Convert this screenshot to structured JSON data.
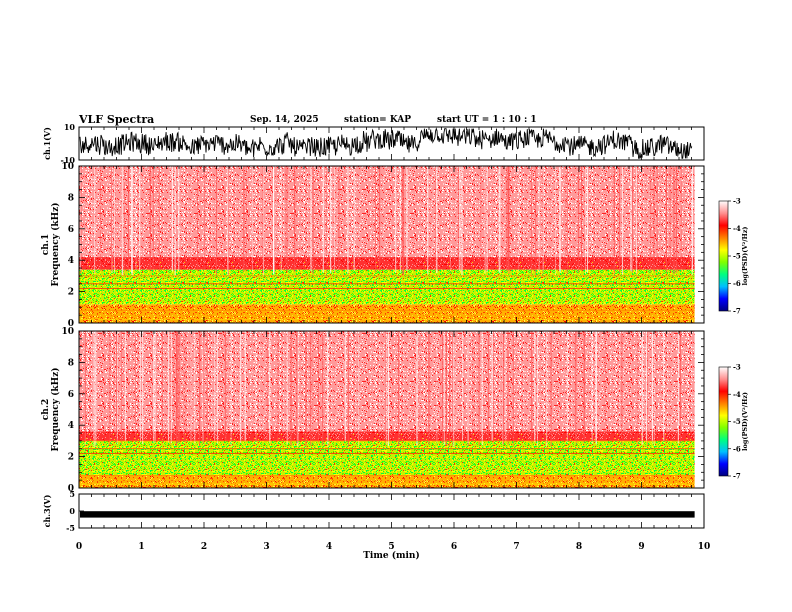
{
  "header": {
    "title": "VLF Spectra",
    "date": "Sep. 14, 2025",
    "station": "station= KAP",
    "start": "start  UT =   1 : 10 : 1"
  },
  "chart_data": [
    {
      "type": "line",
      "name": "ch1-waveform",
      "ylabel": "ch.1(V)",
      "ylim": [
        -10,
        10
      ],
      "yticks": [
        "10",
        "-10"
      ],
      "description": "noisy waveform oscillating between about -10 and 10 V"
    },
    {
      "type": "heatmap",
      "name": "ch1-spectrogram",
      "ylabel_top": "ch.1",
      "ylabel": "Frequency (kHz)",
      "ylim": [
        0,
        10
      ],
      "yticks": [
        "0",
        "2",
        "4",
        "6",
        "8",
        "10"
      ],
      "bands": [
        {
          "from": 0,
          "to": 1.2,
          "level": "orange"
        },
        {
          "from": 1.2,
          "to": 3.4,
          "level": "green-yellow"
        },
        {
          "from": 3.4,
          "to": 4.2,
          "level": "red"
        },
        {
          "from": 4.2,
          "to": 10,
          "level": "light-red"
        }
      ]
    },
    {
      "type": "heatmap",
      "name": "ch2-spectrogram",
      "ylabel_top": "ch.2",
      "ylabel": "Frequency (kHz)",
      "ylim": [
        0,
        10
      ],
      "yticks": [
        "0",
        "2",
        "4",
        "6",
        "8",
        "10"
      ],
      "bands": [
        {
          "from": 0,
          "to": 0.8,
          "level": "orange"
        },
        {
          "from": 0.8,
          "to": 3.0,
          "level": "green-yellow"
        },
        {
          "from": 3.0,
          "to": 3.6,
          "level": "red"
        },
        {
          "from": 3.6,
          "to": 10,
          "level": "light-red"
        }
      ]
    },
    {
      "type": "line",
      "name": "ch3-waveform",
      "ylabel": "ch.3(V)",
      "ylim": [
        -5,
        5
      ],
      "yticks": [
        "5",
        "0",
        "-5"
      ],
      "level": -1.0,
      "xlabel": "Time (min)",
      "xlim": [
        0,
        10
      ],
      "xticks": [
        "0",
        "1",
        "2",
        "3",
        "4",
        "5",
        "6",
        "7",
        "8",
        "9",
        "10"
      ]
    }
  ],
  "colorbar": {
    "label": "log(PSD)(V²/Hz)",
    "range": [
      -7,
      -3
    ],
    "ticks": [
      "-3",
      "-4",
      "-5",
      "-6",
      "-7"
    ],
    "colors": [
      "#000080",
      "#0000ff",
      "#00c0ff",
      "#00ff80",
      "#80ff00",
      "#ffff00",
      "#ff8000",
      "#ff0000",
      "#ff9090",
      "#ffffff"
    ]
  }
}
